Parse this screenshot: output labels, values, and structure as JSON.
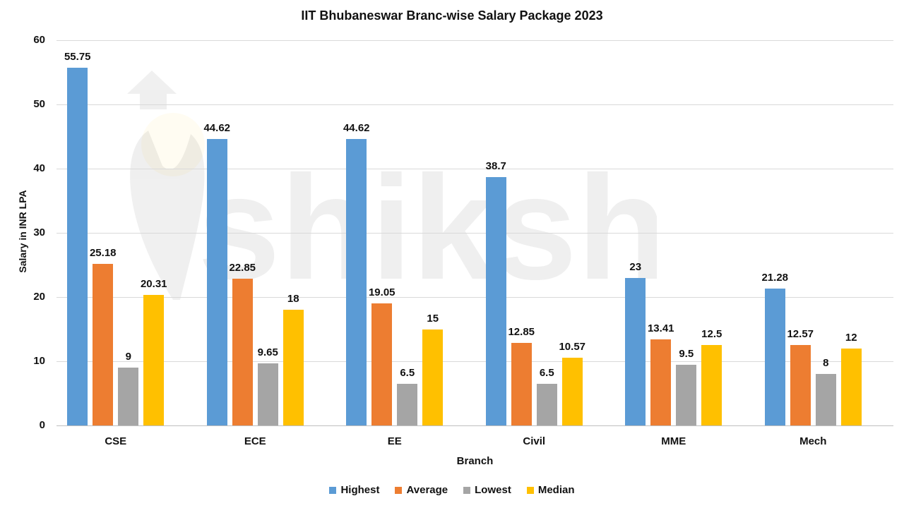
{
  "chart_data": {
    "type": "bar",
    "title": "IIT Bhubaneswar Branc-wise Salary Package 2023",
    "xlabel": "Branch",
    "ylabel": "Salary in INR LPA",
    "ylim": [
      0,
      60
    ],
    "yticks": [
      0,
      10,
      20,
      30,
      40,
      50,
      60
    ],
    "grid": true,
    "legend_position": "bottom",
    "categories": [
      "CSE",
      "ECE",
      "EE",
      "Civil",
      "MME",
      "Mech"
    ],
    "series": [
      {
        "name": "Highest",
        "color": "#5B9BD5",
        "values": [
          55.75,
          44.62,
          44.62,
          38.7,
          23,
          21.28
        ]
      },
      {
        "name": "Average",
        "color": "#ED7D31",
        "values": [
          25.18,
          22.85,
          19.05,
          12.85,
          13.41,
          12.57
        ]
      },
      {
        "name": "Lowest",
        "color": "#A5A5A5",
        "values": [
          9,
          9.65,
          6.5,
          6.5,
          9.5,
          8
        ]
      },
      {
        "name": "Median",
        "color": "#FFC000",
        "values": [
          20.31,
          18,
          15,
          10.57,
          12.5,
          12
        ]
      }
    ],
    "data_labels": true
  },
  "watermark": {
    "text": "shiksha"
  }
}
